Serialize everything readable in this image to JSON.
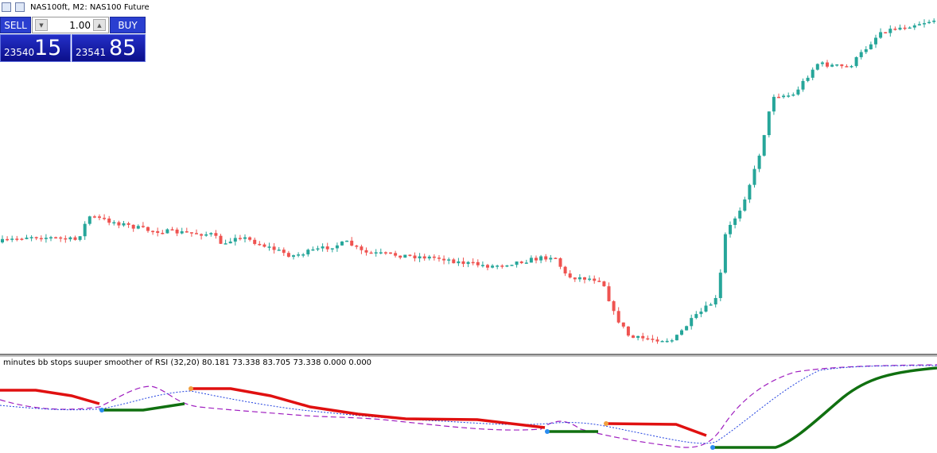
{
  "window": {
    "title": "NAS100ft, M2:  NAS100 Future"
  },
  "trade_panel": {
    "sell": "SELL",
    "lot": "1.00",
    "buy": "BUY",
    "bid": {
      "prefix": "23540",
      "big": "15"
    },
    "ask": {
      "prefix": "23541",
      "big": "85"
    }
  },
  "indicator": {
    "label": "minutes bb stops suuper smoother of RSI (32,20) 80.181 73.338 83.705 73.338 0.000 0.000"
  }
}
